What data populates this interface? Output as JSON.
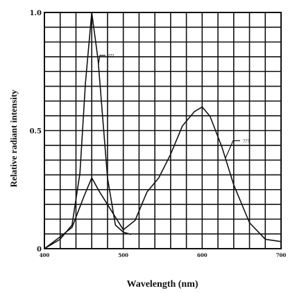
{
  "chart_data": {
    "type": "line",
    "xlabel": "Wavelength (nm)",
    "ylabel": "Relative radiant intensity",
    "xlim": [
      400,
      700
    ],
    "ylim": [
      0,
      1.0
    ],
    "x_ticks": [
      "400",
      "500",
      "600",
      "700"
    ],
    "y_ticks": [
      "0",
      "0.5",
      "1.0"
    ],
    "grid": true,
    "series": [
      {
        "name": "???",
        "x": [
          400,
          420,
          435,
          445,
          452,
          460,
          468,
          480,
          490,
          500,
          510
        ],
        "y": [
          0.0,
          0.04,
          0.1,
          0.32,
          0.7,
          1.0,
          0.8,
          0.3,
          0.1,
          0.07,
          0.06
        ]
      },
      {
        "name": "???",
        "x": [
          400,
          420,
          435,
          450,
          460,
          470,
          485,
          500,
          515,
          530,
          545,
          560,
          575,
          590,
          600,
          610,
          625,
          640,
          660,
          680,
          700
        ],
        "y": [
          0.0,
          0.05,
          0.09,
          0.22,
          0.3,
          0.24,
          0.16,
          0.08,
          0.12,
          0.24,
          0.3,
          0.4,
          0.52,
          0.58,
          0.6,
          0.56,
          0.43,
          0.27,
          0.11,
          0.04,
          0.03
        ]
      }
    ]
  }
}
